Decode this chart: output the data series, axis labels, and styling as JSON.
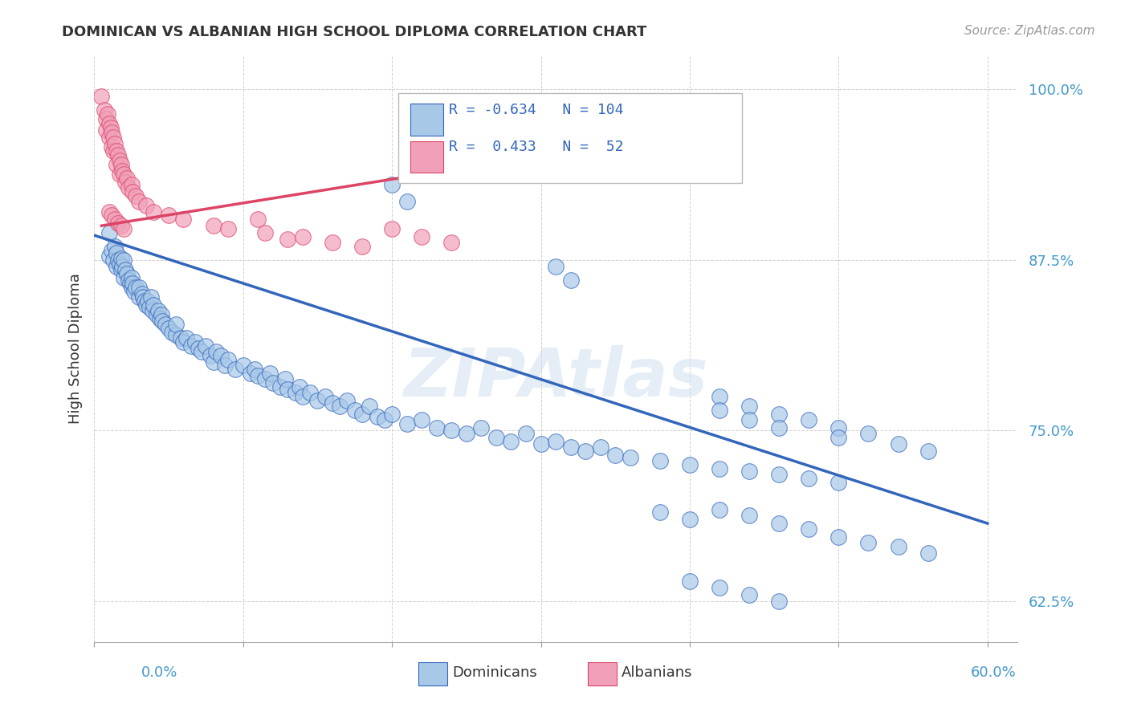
{
  "title": "DOMINICAN VS ALBANIAN HIGH SCHOOL DIPLOMA CORRELATION CHART",
  "source": "Source: ZipAtlas.com",
  "ylabel": "High School Diploma",
  "yticks": [
    0.625,
    0.75,
    0.875,
    1.0
  ],
  "ytick_labels": [
    "62.5%",
    "75.0%",
    "87.5%",
    "100.0%"
  ],
  "legend_label1": "Dominicans",
  "legend_label2": "Albanians",
  "blue_color": "#A8C8E8",
  "pink_color": "#F0A0B8",
  "blue_line_color": "#3366BB",
  "pink_line_color": "#DD4466",
  "watermark": "ZIPAtlas",
  "blue_scatter": [
    [
      0.01,
      0.895
    ],
    [
      0.01,
      0.878
    ],
    [
      0.012,
      0.882
    ],
    [
      0.013,
      0.875
    ],
    [
      0.014,
      0.885
    ],
    [
      0.015,
      0.87
    ],
    [
      0.015,
      0.88
    ],
    [
      0.016,
      0.875
    ],
    [
      0.017,
      0.872
    ],
    [
      0.018,
      0.868
    ],
    [
      0.018,
      0.876
    ],
    [
      0.019,
      0.87
    ],
    [
      0.02,
      0.875
    ],
    [
      0.02,
      0.862
    ],
    [
      0.021,
      0.868
    ],
    [
      0.022,
      0.865
    ],
    [
      0.023,
      0.86
    ],
    [
      0.024,
      0.858
    ],
    [
      0.025,
      0.862
    ],
    [
      0.025,
      0.855
    ],
    [
      0.026,
      0.858
    ],
    [
      0.027,
      0.852
    ],
    [
      0.028,
      0.855
    ],
    [
      0.03,
      0.848
    ],
    [
      0.03,
      0.855
    ],
    [
      0.032,
      0.85
    ],
    [
      0.033,
      0.848
    ],
    [
      0.034,
      0.845
    ],
    [
      0.035,
      0.842
    ],
    [
      0.036,
      0.845
    ],
    [
      0.037,
      0.84
    ],
    [
      0.038,
      0.848
    ],
    [
      0.039,
      0.838
    ],
    [
      0.04,
      0.842
    ],
    [
      0.042,
      0.835
    ],
    [
      0.043,
      0.838
    ],
    [
      0.044,
      0.832
    ],
    [
      0.045,
      0.835
    ],
    [
      0.046,
      0.83
    ],
    [
      0.048,
      0.828
    ],
    [
      0.05,
      0.825
    ],
    [
      0.052,
      0.822
    ],
    [
      0.055,
      0.82
    ],
    [
      0.055,
      0.828
    ],
    [
      0.058,
      0.818
    ],
    [
      0.06,
      0.815
    ],
    [
      0.062,
      0.818
    ],
    [
      0.065,
      0.812
    ],
    [
      0.068,
      0.815
    ],
    [
      0.07,
      0.81
    ],
    [
      0.072,
      0.808
    ],
    [
      0.075,
      0.812
    ],
    [
      0.078,
      0.805
    ],
    [
      0.08,
      0.8
    ],
    [
      0.082,
      0.808
    ],
    [
      0.085,
      0.805
    ],
    [
      0.088,
      0.798
    ],
    [
      0.09,
      0.802
    ],
    [
      0.095,
      0.795
    ],
    [
      0.1,
      0.798
    ],
    [
      0.105,
      0.792
    ],
    [
      0.108,
      0.795
    ],
    [
      0.11,
      0.79
    ],
    [
      0.115,
      0.788
    ],
    [
      0.118,
      0.792
    ],
    [
      0.12,
      0.785
    ],
    [
      0.125,
      0.782
    ],
    [
      0.128,
      0.788
    ],
    [
      0.13,
      0.78
    ],
    [
      0.135,
      0.778
    ],
    [
      0.138,
      0.782
    ],
    [
      0.14,
      0.775
    ],
    [
      0.145,
      0.778
    ],
    [
      0.15,
      0.772
    ],
    [
      0.155,
      0.775
    ],
    [
      0.16,
      0.77
    ],
    [
      0.165,
      0.768
    ],
    [
      0.17,
      0.772
    ],
    [
      0.175,
      0.765
    ],
    [
      0.18,
      0.762
    ],
    [
      0.185,
      0.768
    ],
    [
      0.19,
      0.76
    ],
    [
      0.195,
      0.758
    ],
    [
      0.2,
      0.762
    ],
    [
      0.21,
      0.755
    ],
    [
      0.22,
      0.758
    ],
    [
      0.23,
      0.752
    ],
    [
      0.24,
      0.75
    ],
    [
      0.25,
      0.748
    ],
    [
      0.26,
      0.752
    ],
    [
      0.27,
      0.745
    ],
    [
      0.28,
      0.742
    ],
    [
      0.29,
      0.748
    ],
    [
      0.3,
      0.74
    ],
    [
      0.31,
      0.742
    ],
    [
      0.32,
      0.738
    ],
    [
      0.33,
      0.735
    ],
    [
      0.34,
      0.738
    ],
    [
      0.35,
      0.732
    ],
    [
      0.36,
      0.73
    ],
    [
      0.38,
      0.728
    ],
    [
      0.4,
      0.725
    ],
    [
      0.42,
      0.722
    ],
    [
      0.44,
      0.72
    ],
    [
      0.46,
      0.718
    ],
    [
      0.48,
      0.715
    ],
    [
      0.5,
      0.712
    ],
    [
      0.2,
      0.93
    ],
    [
      0.21,
      0.918
    ],
    [
      0.31,
      0.87
    ],
    [
      0.32,
      0.86
    ],
    [
      0.42,
      0.775
    ],
    [
      0.44,
      0.768
    ],
    [
      0.46,
      0.762
    ],
    [
      0.48,
      0.758
    ],
    [
      0.5,
      0.752
    ],
    [
      0.52,
      0.748
    ],
    [
      0.42,
      0.765
    ],
    [
      0.44,
      0.758
    ],
    [
      0.46,
      0.752
    ],
    [
      0.5,
      0.745
    ],
    [
      0.54,
      0.74
    ],
    [
      0.56,
      0.735
    ],
    [
      0.38,
      0.69
    ],
    [
      0.4,
      0.685
    ],
    [
      0.42,
      0.692
    ],
    [
      0.44,
      0.688
    ],
    [
      0.46,
      0.682
    ],
    [
      0.48,
      0.678
    ],
    [
      0.5,
      0.672
    ],
    [
      0.52,
      0.668
    ],
    [
      0.54,
      0.665
    ],
    [
      0.56,
      0.66
    ],
    [
      0.4,
      0.64
    ],
    [
      0.42,
      0.635
    ],
    [
      0.44,
      0.63
    ],
    [
      0.46,
      0.625
    ]
  ],
  "pink_scatter": [
    [
      0.005,
      0.995
    ],
    [
      0.007,
      0.985
    ],
    [
      0.008,
      0.978
    ],
    [
      0.008,
      0.97
    ],
    [
      0.009,
      0.982
    ],
    [
      0.01,
      0.975
    ],
    [
      0.01,
      0.965
    ],
    [
      0.011,
      0.972
    ],
    [
      0.012,
      0.968
    ],
    [
      0.012,
      0.958
    ],
    [
      0.013,
      0.965
    ],
    [
      0.013,
      0.955
    ],
    [
      0.014,
      0.96
    ],
    [
      0.015,
      0.955
    ],
    [
      0.015,
      0.945
    ],
    [
      0.016,
      0.952
    ],
    [
      0.017,
      0.948
    ],
    [
      0.017,
      0.938
    ],
    [
      0.018,
      0.945
    ],
    [
      0.019,
      0.94
    ],
    [
      0.02,
      0.938
    ],
    [
      0.021,
      0.932
    ],
    [
      0.022,
      0.935
    ],
    [
      0.023,
      0.928
    ],
    [
      0.025,
      0.93
    ],
    [
      0.026,
      0.925
    ],
    [
      0.028,
      0.922
    ],
    [
      0.03,
      0.918
    ],
    [
      0.01,
      0.91
    ],
    [
      0.012,
      0.908
    ],
    [
      0.014,
      0.905
    ],
    [
      0.016,
      0.902
    ],
    [
      0.018,
      0.9
    ],
    [
      0.02,
      0.898
    ],
    [
      0.035,
      0.915
    ],
    [
      0.04,
      0.91
    ],
    [
      0.05,
      0.908
    ],
    [
      0.06,
      0.905
    ],
    [
      0.08,
      0.9
    ],
    [
      0.09,
      0.898
    ],
    [
      0.11,
      0.905
    ],
    [
      0.115,
      0.895
    ],
    [
      0.13,
      0.89
    ],
    [
      0.14,
      0.892
    ],
    [
      0.16,
      0.888
    ],
    [
      0.18,
      0.885
    ],
    [
      0.2,
      0.898
    ],
    [
      0.22,
      0.892
    ],
    [
      0.24,
      0.888
    ]
  ],
  "xlim": [
    0.0,
    0.62
  ],
  "ylim": [
    0.595,
    1.025
  ],
  "blue_trendline_x": [
    0.0,
    0.6
  ],
  "blue_trendline_y": [
    0.893,
    0.682
  ],
  "pink_trendline_x": [
    0.005,
    0.32
  ],
  "pink_trendline_y": [
    0.9,
    0.955
  ]
}
